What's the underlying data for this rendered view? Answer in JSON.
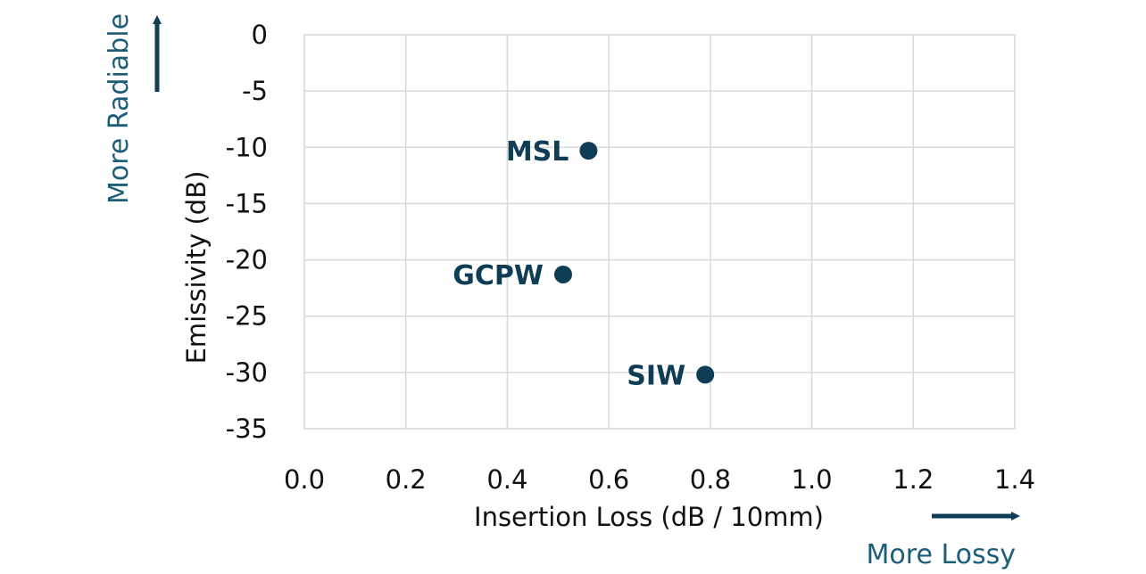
{
  "chart_data": {
    "type": "scatter",
    "title": "",
    "xlabel": "Insertion Loss (dB / 10mm)",
    "ylabel": "Emissivity  (dB)",
    "xlim": [
      0,
      1.4
    ],
    "ylim": [
      -35,
      0
    ],
    "xticks": [
      "0.0",
      "0.2",
      "0.4",
      "0.6",
      "0.8",
      "1.0",
      "1.2",
      "1.4"
    ],
    "yticks": [
      "0",
      "-5",
      "-10",
      "-15",
      "-20",
      "-25",
      "-30",
      "-35"
    ],
    "grid": true,
    "points": [
      {
        "label": "MSL",
        "x": 0.56,
        "y": -10.3
      },
      {
        "label": "GCPW",
        "x": 0.51,
        "y": -21.3
      },
      {
        "label": "SIW",
        "x": 0.79,
        "y": -30.2
      }
    ],
    "annotations": {
      "x_direction": "More Lossy",
      "y_direction": "More Radiable"
    },
    "colors": {
      "marker": "#0e3d55",
      "annotation": "#1c5d78",
      "grid": "#d9d9d9",
      "text": "#111111"
    }
  }
}
